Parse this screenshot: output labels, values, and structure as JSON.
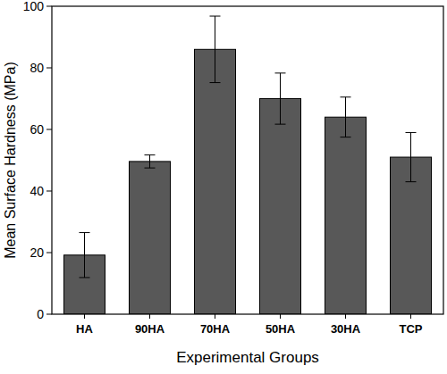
{
  "chart_data": {
    "type": "bar",
    "x_label": "Experimental Groups",
    "y_label": "Mean Surface Hardness (MPa)",
    "categories": [
      "HA",
      "90HA",
      "70HA",
      "50HA",
      "30HA",
      "TCP"
    ],
    "values": [
      19.2,
      49.6,
      86,
      70,
      64,
      51
    ],
    "errors": [
      7.3,
      2.1,
      10.8,
      8.3,
      6.5,
      8
    ],
    "color": "#585858",
    "ylim": [
      0,
      100
    ],
    "yticks": [
      0,
      20,
      40,
      60,
      80,
      100
    ],
    "grid": false
  }
}
